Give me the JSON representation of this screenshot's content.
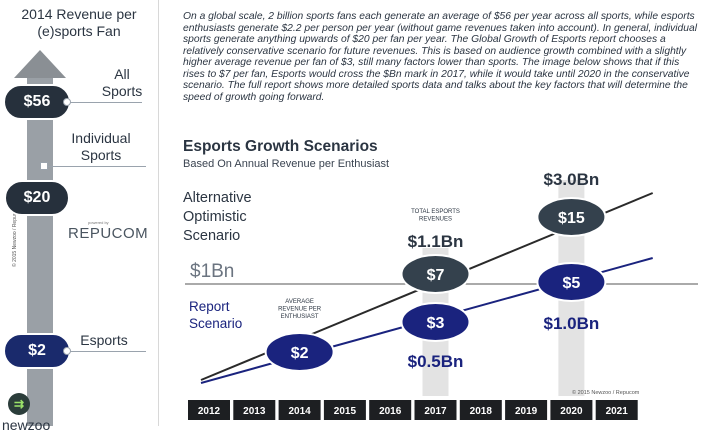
{
  "left_panel": {
    "title_line1": "2014 Revenue per",
    "title_line2": "(e)sports Fan",
    "items": [
      {
        "value": "$56",
        "label_line1": "All",
        "label_line2": "Sports"
      },
      {
        "value": "",
        "label_line1": "Individual",
        "label_line2": "Sports"
      },
      {
        "value": "$20",
        "label_line1": "",
        "label_line2": ""
      },
      {
        "value": "$2",
        "label_line1": "Esports",
        "label_line2": ""
      }
    ],
    "sponsor_small": "powered by",
    "sponsor_name": "REPUCOM",
    "vertical_copyright": "© 2015 Newzoo / Repucom",
    "footer_logo_text": "newzoo"
  },
  "paragraph": "On a global scale, 2 billion sports fans each generate an average of $56 per year across all sports, while esports enthusiasts generate $2.2 per person per year (without game revenues taken into account). In general, individual sports generate anything upwards of $20 per fan per year. The Global Growth of Esports report chooses a relatively conservative scenario for future revenues. This is based on audience growth combined with a slightly higher average revenue per fan of $3, still many factors lower than sports. The image below shows that if this rises to $7 per fan, Esports would cross the $Bn mark in 2017, while it would take until 2020 in the conservative scenario. The full report shows more detailed sports data and talks about the key factors that will determine the speed of growth going forward.",
  "chart_data": {
    "type": "line",
    "title": "Esports Growth Scenarios",
    "subtitle": "Based On Annual Revenue per Enthusiast",
    "categories": [
      "2012",
      "2013",
      "2014",
      "2015",
      "2016",
      "2017",
      "2018",
      "2019",
      "2020",
      "2021"
    ],
    "reference_line": {
      "label": "$1Bn",
      "value": 1.0
    },
    "series": [
      {
        "name": "Alternative Optimistic Scenario",
        "name_lines": [
          "Alternative",
          "Optimistic",
          "Scenario"
        ],
        "color": "#2a2a2a",
        "start": {
          "x": "2012",
          "y": 0.0
        },
        "end": {
          "x": "2021",
          "y": 3.1
        }
      },
      {
        "name": "Report Scenario",
        "name_lines": [
          "Report",
          "Scenario"
        ],
        "color": "#1a237e",
        "start": {
          "x": "2012",
          "y": 0.0
        },
        "end": {
          "x": "2021",
          "y": 1.1
        }
      }
    ],
    "markers": [
      {
        "series": 1,
        "x": "2014",
        "label": "$2",
        "top_text": "AVERAGE REVENUE PER ENTHUSIAST",
        "top_text_lines": [
          "AVERAGE",
          "REVENUE PER",
          "ENTHUSIAST"
        ],
        "fill": "#1a237e"
      },
      {
        "series": 1,
        "x": "2017",
        "label": "$3",
        "fill": "#1a237e",
        "below_text": "$0.5Bn"
      },
      {
        "series": 0,
        "x": "2017",
        "label": "$7",
        "fill": "#34414d",
        "top_text_lines": [
          "TOTAL ESPORTS",
          "REVENUES"
        ],
        "above_text": "$1.1Bn"
      },
      {
        "series": 0,
        "x": "2020",
        "label": "$15",
        "fill": "#34414d",
        "above_text": "$3.0Bn"
      },
      {
        "series": 1,
        "x": "2020",
        "label": "$5",
        "fill": "#1a237e",
        "below_text": "$1.0Bn"
      }
    ],
    "grid": false,
    "copyright": "© 2015 Newzoo / Repucom"
  },
  "colors": {
    "dark": "#26303c",
    "navy": "#1a237e",
    "grey_bar": "#d9d9d9"
  }
}
